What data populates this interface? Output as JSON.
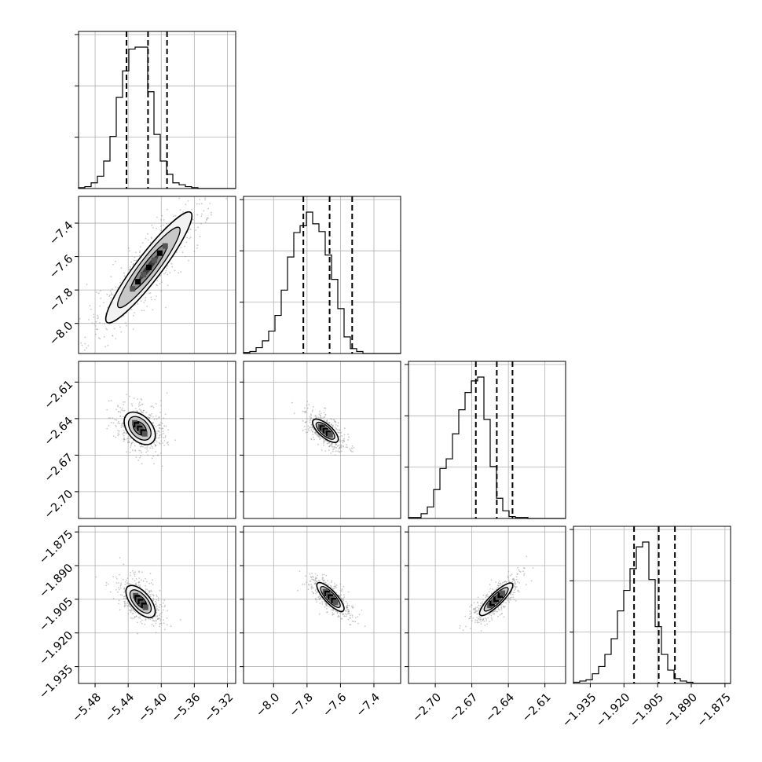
{
  "chart_data": {
    "type": "corner",
    "parameters": [
      {
        "ticks": [
          "−5.48",
          "−5.44",
          "−5.40",
          "−5.36",
          "−5.32"
        ],
        "tick_values": [
          -5.48,
          -5.44,
          -5.4,
          -5.36,
          -5.32
        ],
        "range": [
          -5.5,
          -5.31
        ],
        "quantiles": {
          "q16": -5.442,
          "median": -5.416,
          "q84": -5.393
        },
        "histogram": {
          "edges_start": -5.5,
          "bin_width": 0.0076,
          "counts": [
            1,
            2,
            6,
            13,
            29,
            55,
            96,
            124,
            147,
            149,
            149,
            102,
            57,
            29,
            15,
            6,
            4,
            2,
            1,
            0,
            0,
            0,
            0,
            0,
            0
          ]
        }
      },
      {
        "ticks": [
          "−8.0",
          "−7.8",
          "−7.6",
          "−7.4"
        ],
        "tick_values": [
          -8.0,
          -7.8,
          -7.6,
          -7.4
        ],
        "range": [
          -8.18,
          -7.24
        ],
        "quantiles": {
          "q16": -7.822,
          "median": -7.665,
          "q84": -7.53
        },
        "histogram": {
          "edges_start": -8.18,
          "bin_width": 0.0376,
          "counts": [
            1,
            2,
            6,
            13,
            23,
            39,
            65,
            99,
            124,
            131,
            145,
            133,
            125,
            101,
            76,
            46,
            17,
            5,
            2,
            0,
            0,
            0,
            0,
            0,
            0
          ]
        }
      },
      {
        "ticks": [
          "−2.70",
          "−2.67",
          "−2.64",
          "−2.61"
        ],
        "tick_values": [
          -2.7,
          -2.67,
          -2.64,
          -2.61
        ],
        "range": [
          -2.722,
          -2.593
        ],
        "quantiles": {
          "q16": -2.6667,
          "median": -2.6495,
          "q84": -2.6366
        },
        "histogram": {
          "edges_start": -2.722,
          "bin_width": 0.00516,
          "counts": [
            1,
            1,
            5,
            12,
            30,
            52,
            62,
            88,
            113,
            131,
            143,
            147,
            103,
            54,
            21,
            8,
            2,
            1,
            1,
            0,
            0,
            0,
            0,
            0,
            0
          ]
        }
      },
      {
        "ticks": [
          "−1.935",
          "−1.920",
          "−1.905",
          "−1.890",
          "−1.875"
        ],
        "tick_values": [
          -1.935,
          -1.92,
          -1.905,
          -1.89,
          -1.875
        ],
        "range": [
          -1.9425,
          -1.8725
        ],
        "quantiles": {
          "q16": -1.9155,
          "median": -1.9045,
          "q84": -1.8973
        },
        "histogram": {
          "edges_start": -1.9425,
          "bin_width": 0.0028,
          "counts": [
            1,
            2,
            3,
            8,
            14,
            24,
            37,
            60,
            77,
            95,
            113,
            117,
            86,
            47,
            24,
            11,
            4,
            2,
            1,
            0,
            0,
            0,
            0,
            0,
            0
          ]
        }
      }
    ],
    "contours": {
      "1_0": {
        "center": [
          -5.415,
          -7.665
        ],
        "slope_dy_dx": 6.5,
        "minor": 0.0055,
        "major": 0.092
      },
      "2_0": {
        "center": [
          -5.426,
          -2.648
        ],
        "slope_dy_dx": -0.75,
        "minor": 0.005,
        "major": 0.028
      },
      "2_1": {
        "center": [
          -7.69,
          -2.65
        ],
        "slope_dy_dx": -0.12,
        "minor": 0.0036,
        "major": 0.132
      },
      "3_0": {
        "center": [
          -5.425,
          -1.906
        ],
        "slope_dy_dx": -0.43,
        "minor": 0.003,
        "major": 0.028
      },
      "3_1": {
        "center": [
          -7.66,
          -1.904
        ],
        "slope_dy_dx": -0.08,
        "minor": 0.0022,
        "major": 0.14
      },
      "3_2": {
        "center": [
          -2.65,
          -1.905
        ],
        "slope_dy_dx": 0.53,
        "minor": 0.0003,
        "major": 0.024
      }
    },
    "grid": true
  }
}
